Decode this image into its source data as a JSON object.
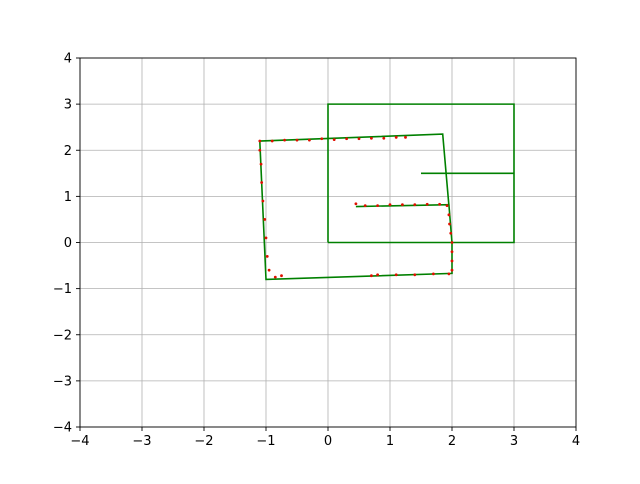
{
  "chart_data": {
    "type": "line",
    "title": "",
    "xlabel": "",
    "ylabel": "",
    "xlim": [
      -4,
      4
    ],
    "ylim": [
      -4,
      4
    ],
    "grid": true,
    "x_ticks": [
      -4,
      -3,
      -2,
      -1,
      0,
      1,
      2,
      3,
      4
    ],
    "y_ticks": [
      -4,
      -3,
      -2,
      -1,
      0,
      1,
      2,
      3,
      4
    ],
    "x_tick_labels": [
      "−4",
      "−3",
      "−2",
      "−1",
      "0",
      "1",
      "2",
      "3",
      "4"
    ],
    "y_tick_labels": [
      "−4",
      "−3",
      "−2",
      "−1",
      "0",
      "1",
      "2",
      "3",
      "4"
    ],
    "colors": {
      "green": "#008000",
      "red": "#e01000",
      "grid": "#b0b0b0",
      "axes": "#000000"
    },
    "series": [
      {
        "kind": "line",
        "color": "#008000",
        "x": [
          0,
          3,
          3,
          0,
          0
        ],
        "y": [
          0,
          0,
          3,
          3,
          0
        ]
      },
      {
        "kind": "line",
        "color": "#008000",
        "x": [
          1.5,
          3
        ],
        "y": [
          1.5,
          1.5
        ]
      },
      {
        "kind": "line",
        "color": "#008000",
        "x": [
          0.45,
          1.95,
          2.0,
          2.0,
          -1.0,
          -1.1,
          1.85,
          1.95
        ],
        "y": [
          0.78,
          0.82,
          0.0,
          -0.67,
          -0.8,
          2.2,
          2.35,
          0.8
        ]
      },
      {
        "kind": "scatter",
        "color": "#e01000",
        "x": [
          0.45,
          0.6,
          0.8,
          1.0,
          1.2,
          1.4,
          1.6,
          1.8,
          1.92,
          1.95,
          1.96,
          1.98,
          2.0,
          2.0,
          2.0,
          2.0,
          1.95,
          1.7,
          1.4,
          1.1,
          0.8,
          0.7,
          -0.75,
          -0.85,
          -0.95,
          -0.98,
          -1.0,
          -1.02,
          -1.05,
          -1.07,
          -1.08,
          -1.1,
          -1.1,
          -0.9,
          -0.7,
          -0.5,
          -0.3,
          -0.1,
          0.1,
          0.3,
          0.5,
          0.7,
          0.9,
          1.1,
          1.25
        ],
        "y": [
          0.84,
          0.8,
          0.8,
          0.82,
          0.82,
          0.82,
          0.83,
          0.83,
          0.8,
          0.6,
          0.4,
          0.2,
          0.0,
          -0.2,
          -0.4,
          -0.6,
          -0.68,
          -0.68,
          -0.7,
          -0.7,
          -0.7,
          -0.72,
          -0.72,
          -0.75,
          -0.6,
          -0.3,
          0.1,
          0.5,
          0.9,
          1.3,
          1.7,
          2.0,
          2.2,
          2.2,
          2.22,
          2.22,
          2.22,
          2.25,
          2.23,
          2.25,
          2.25,
          2.26,
          2.26,
          2.28,
          2.28
        ]
      }
    ]
  }
}
